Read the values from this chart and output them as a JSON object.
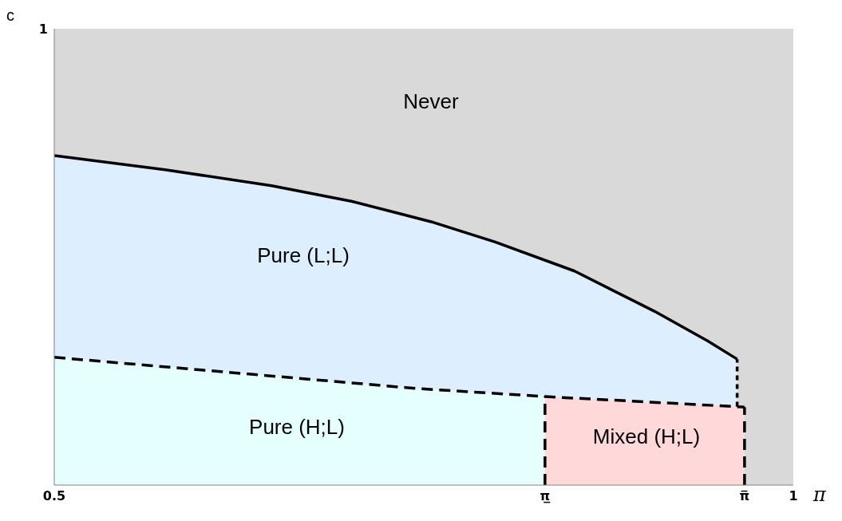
{
  "chart_data": {
    "type": "area",
    "xlabel": "π",
    "ylabel": "c",
    "xlim": [
      0.5,
      1
    ],
    "ylim": [
      0,
      1
    ],
    "xticks": [
      0.5,
      {
        "value": 0.832,
        "label": "π̲"
      },
      {
        "value": 0.967,
        "label": "π̅"
      },
      1
    ],
    "yticks": [
      0,
      1
    ],
    "grid": false,
    "marker": "none",
    "bands": [
      {
        "axis": "y",
        "from": 0,
        "to": 1,
        "color": "#d9d9d9"
      }
    ],
    "series": [
      {
        "color": "#ddeeff",
        "line_style": "solid",
        "x": [
          0.5,
          0.575,
          0.647,
          0.701,
          0.755,
          0.798,
          0.852,
          0.906,
          0.942,
          0.962
        ],
        "values": [
          0.722,
          0.691,
          0.656,
          0.622,
          0.577,
          0.533,
          0.469,
          0.381,
          0.316,
          0.276
        ]
      },
      {
        "color": "#e5ffff",
        "x": [
          0.5,
          0.744,
          0.832
        ],
        "values": [
          0.28,
          0.212,
          0.194
        ]
      },
      {
        "color": "#ffd9d9",
        "x": [
          0.832,
          0.967
        ],
        "values": [
          0.194,
          0.171
        ]
      },
      {
        "type": "line",
        "color": "#000000",
        "line_style": "dashed",
        "x": [
          0.5,
          0.744,
          0.832,
          0.967
        ],
        "values": [
          0.28,
          0.212,
          0.194,
          0.171
        ]
      },
      {
        "type": "line",
        "color": "#000000",
        "line_style": "dotted",
        "x": [
          0.962,
          0.962
        ],
        "values": [
          0.172,
          0.276
        ]
      },
      {
        "type": "line",
        "color": "#000000",
        "line_style": "dashed",
        "x": [
          0.832,
          0.832
        ],
        "values": [
          0,
          0.194
        ]
      },
      {
        "type": "line",
        "color": "#000000",
        "line_style": "dashed",
        "x": [
          0.967,
          0.967
        ],
        "values": [
          0,
          0.171
        ]
      }
    ],
    "annotations": [
      "Never",
      "Pure (L;L)",
      "Pure (H;L)",
      "Mixed (H;L)"
    ]
  }
}
